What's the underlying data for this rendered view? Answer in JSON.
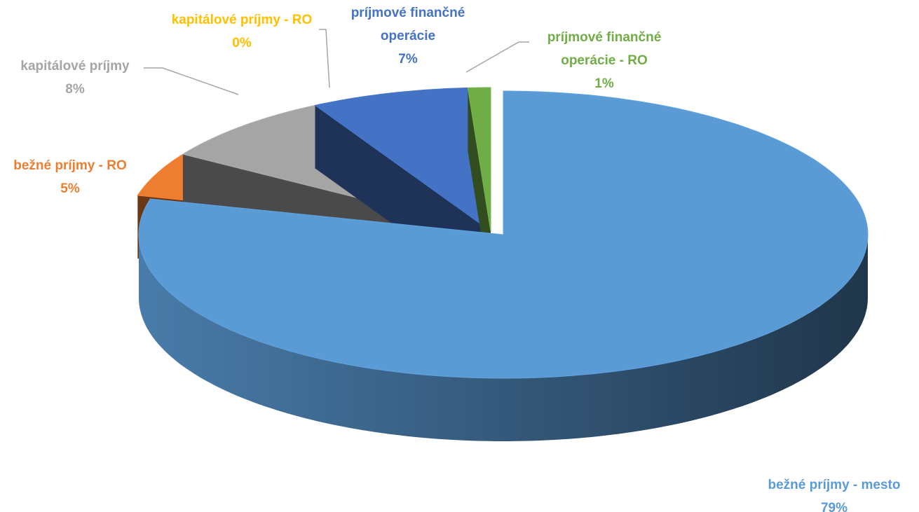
{
  "chart_data": {
    "type": "pie",
    "categories": [
      "bežné príjmy - mesto",
      "bežné príjmy - RO",
      "kapitálové príjmy",
      "kapitálové príjmy - RO",
      "príjmové finančné operácie",
      "príjmové finančné operácie - RO"
    ],
    "values": [
      79,
      5,
      8,
      0,
      7,
      1
    ],
    "value_labels": [
      "79%",
      "5%",
      "8%",
      "0%",
      "7%",
      "1%"
    ],
    "colors": [
      "#5b9bd5",
      "#ed7d31",
      "#a5a5a5",
      "#ffc000",
      "#4472c4",
      "#70ad47"
    ]
  }
}
